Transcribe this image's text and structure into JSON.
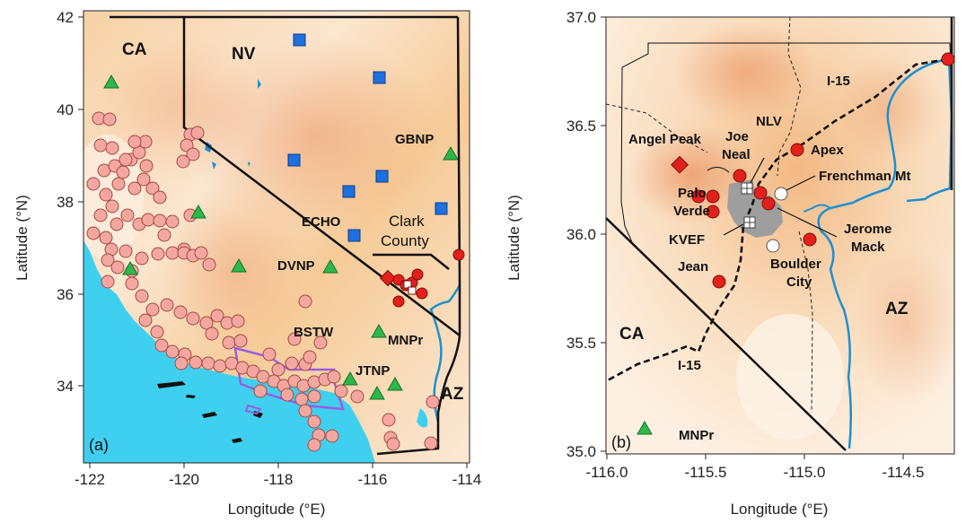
{
  "panel_a": {
    "tag": "(a)",
    "x_ticks": [
      "-122",
      "-120",
      "-118",
      "-116",
      "-114"
    ],
    "y_ticks": [
      "34",
      "36",
      "38",
      "40",
      "42"
    ],
    "xlabel": "Longitude (°E)",
    "ylabel": "Latitude (°N)",
    "labels": {
      "ca": "CA",
      "nv": "NV",
      "az": "AZ",
      "gbnp": "GBNP",
      "echo": "ECHO",
      "dvnp": "DVNP",
      "bstw": "BSTW",
      "mnpr": "MNPr",
      "jtnp": "JTNP",
      "clark": "Clark",
      "county": "County"
    }
  },
  "panel_b": {
    "tag": "(b)",
    "x_ticks": [
      "-116.0",
      "-115.5",
      "-115.0",
      "-114.5"
    ],
    "y_ticks": [
      "35.0",
      "35.5",
      "36.0",
      "36.5",
      "37.0"
    ],
    "xlabel": "Longitude (°E)",
    "ylabel": "Latitude (°N)",
    "labels": {
      "i15_top": "I-15",
      "i15_bot": "I-15",
      "angel_peak": "Angel Peak",
      "nlv": "NLV",
      "joe": "Joe",
      "neal": "Neal",
      "apex": "Apex",
      "frenchman": "Frenchman Mt",
      "palo": "Palo",
      "verde": "Verde",
      "jerome": "Jerome",
      "mack": "Mack",
      "kvef": "KVEF",
      "boulder": "Boulder",
      "city": "City",
      "jean": "Jean",
      "ca": "CA",
      "az": "AZ",
      "mnpr": "MNPr"
    }
  },
  "colors": {
    "ocean": "#3fd0f0",
    "land_light": "#fbe3c6",
    "land_mid": "#f4c48e",
    "land_dark": "#e89a5c",
    "red_site": "#e3201b",
    "pink_site": "#f4a7a0",
    "blue_site": "#1e6fe0",
    "green_site": "#2db84a",
    "purple_outline": "#9b5ce0",
    "urban": "#9e9e9e"
  }
}
